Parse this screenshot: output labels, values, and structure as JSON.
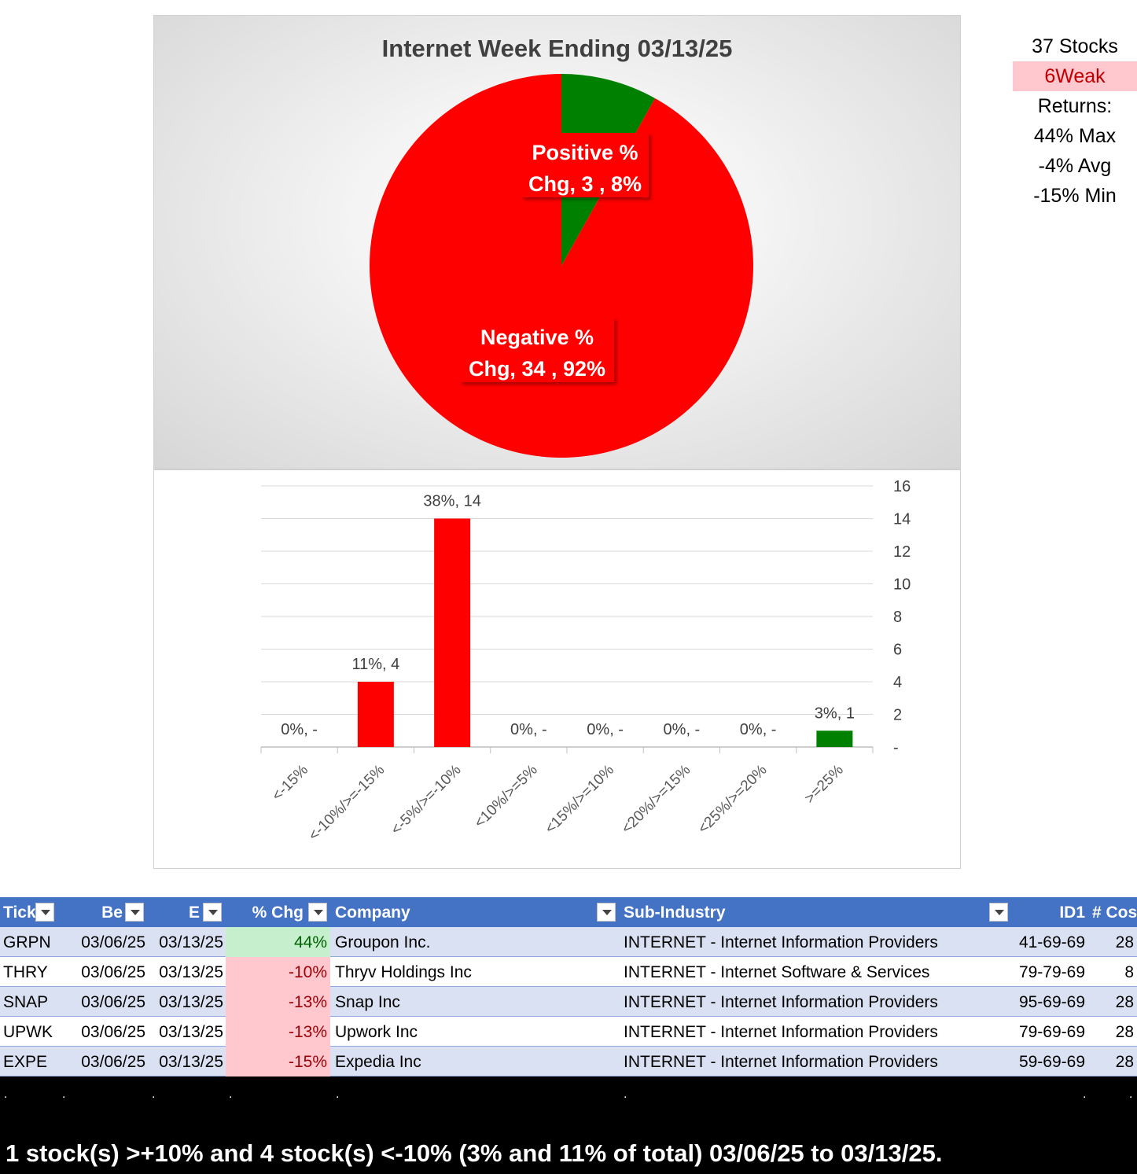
{
  "chart_data": [
    {
      "type": "pie",
      "title": "Internet Week Ending 03/13/25",
      "slices": [
        {
          "name": "Positive % Chg",
          "count": 3,
          "percent": 8,
          "color": "#008000",
          "label_line1": "Positive %",
          "label_line2": "Chg,  3 , 8%"
        },
        {
          "name": "Negative % Chg",
          "count": 34,
          "percent": 92,
          "color": "#ff0000",
          "label_line1": "Negative %",
          "label_line2": "Chg,  34 , 92%"
        }
      ]
    },
    {
      "type": "bar",
      "categories": [
        "<-15%",
        "<-10%/>=-15%",
        "<-5%/>=-10%",
        "<10%/>=5%",
        "<15%/>=10%",
        "<20%/>=15%",
        "<25%/>=20%",
        ">=25%"
      ],
      "values": [
        0,
        4,
        14,
        0,
        0,
        0,
        0,
        1
      ],
      "colors": [
        "#ff0000",
        "#ff0000",
        "#ff0000",
        "#008000",
        "#008000",
        "#008000",
        "#008000",
        "#008000"
      ],
      "data_labels": [
        "0%,  -",
        "11%,  4",
        "38%,  14",
        "0%,  -",
        "0%,  -",
        "0%,  -",
        "0%,  -",
        "3%,  1"
      ],
      "yticks": [
        "-",
        "2",
        "4",
        "6",
        "8",
        "10",
        "12",
        "14",
        "16"
      ],
      "ylim": [
        0,
        16
      ],
      "y_axis_side": "right",
      "grid": true
    }
  ],
  "summary": {
    "stocks": "37 Stocks",
    "weak": "6Weak",
    "returns": "Returns:",
    "max": "44% Max",
    "avg": "-4% Avg",
    "min": "-15% Min"
  },
  "table": {
    "headers": [
      "Tick",
      "Be",
      "E",
      "% Chg",
      "Company",
      "Sub-Industry",
      "ID1",
      "# Cos"
    ],
    "rows": [
      {
        "ticker": "GRPN",
        "begin": "03/06/25",
        "end": "03/13/25",
        "chg": "44%",
        "company": "Groupon Inc.",
        "subindustry": "INTERNET - Internet Information Providers",
        "id1": "41-69-69",
        "cos": "28",
        "sign": "pos"
      },
      {
        "ticker": "THRY",
        "begin": "03/06/25",
        "end": "03/13/25",
        "chg": "-10%",
        "company": "Thryv Holdings Inc",
        "subindustry": "INTERNET - Internet Software & Services",
        "id1": "79-79-69",
        "cos": "8",
        "sign": "neg"
      },
      {
        "ticker": "SNAP",
        "begin": "03/06/25",
        "end": "03/13/25",
        "chg": "-13%",
        "company": "Snap Inc",
        "subindustry": "INTERNET - Internet Information Providers",
        "id1": "95-69-69",
        "cos": "28",
        "sign": "neg"
      },
      {
        "ticker": "UPWK",
        "begin": "03/06/25",
        "end": "03/13/25",
        "chg": "-13%",
        "company": "Upwork Inc",
        "subindustry": "INTERNET - Internet Information Providers",
        "id1": "79-69-69",
        "cos": "28",
        "sign": "neg"
      },
      {
        "ticker": "EXPE",
        "begin": "03/06/25",
        "end": "03/13/25",
        "chg": "-15%",
        "company": "Expedia Inc",
        "subindustry": "INTERNET - Internet Information Providers",
        "id1": "59-69-69",
        "cos": "28",
        "sign": "neg"
      }
    ]
  },
  "footer": {
    "dots": [
      ".",
      ".",
      ".",
      ".",
      ".",
      ".",
      ".",
      "."
    ],
    "text": "1 stock(s) >+10% and 4 stock(s) <-10% (3% and 11% of total) 03/06/25 to 03/13/25."
  }
}
